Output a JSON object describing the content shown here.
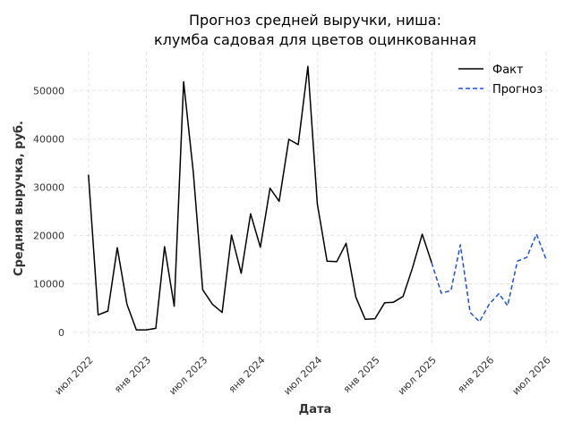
{
  "chart_data": {
    "type": "line",
    "title_lines": [
      "Прогноз средней выручки, ниша:",
      "клумба садовая для цветов оцинкованная"
    ],
    "xlabel": "Дата",
    "ylabel": "Средняя выручка, руб.",
    "ylim": [
      -3000,
      58000
    ],
    "yticks": [
      0,
      10000,
      20000,
      30000,
      40000,
      50000
    ],
    "xlim": [
      "2022-05-13",
      "2026-08-07"
    ],
    "xticks": [
      {
        "date": "2022-07-01",
        "label": "июл 2022"
      },
      {
        "date": "2023-01-01",
        "label": "янв 2023"
      },
      {
        "date": "2023-07-01",
        "label": "июл 2023"
      },
      {
        "date": "2024-01-01",
        "label": "янв 2024"
      },
      {
        "date": "2024-07-01",
        "label": "июл 2024"
      },
      {
        "date": "2025-01-01",
        "label": "янв 2025"
      },
      {
        "date": "2025-07-01",
        "label": "июл 2025"
      },
      {
        "date": "2026-01-01",
        "label": "янв 2026"
      },
      {
        "date": "2026-07-01",
        "label": "июл 2026"
      }
    ],
    "grid": true,
    "legend_position": "top-right",
    "series": [
      {
        "name": "Факт",
        "color": "#000000",
        "style": "solid",
        "x": [
          "2022-06-30",
          "2022-07-31",
          "2022-08-31",
          "2022-09-30",
          "2022-10-31",
          "2022-11-30",
          "2022-12-31",
          "2023-01-31",
          "2023-02-28",
          "2023-03-31",
          "2023-04-30",
          "2023-05-31",
          "2023-06-30",
          "2023-07-31",
          "2023-08-31",
          "2023-09-30",
          "2023-10-31",
          "2023-11-30",
          "2023-12-31",
          "2024-01-31",
          "2024-02-29",
          "2024-03-31",
          "2024-04-30",
          "2024-05-31",
          "2024-06-30",
          "2024-07-31",
          "2024-08-31",
          "2024-09-30",
          "2024-10-31",
          "2024-11-30",
          "2024-12-31",
          "2025-01-31",
          "2025-02-28",
          "2025-03-31",
          "2025-04-30",
          "2025-05-31",
          "2025-06-30"
        ],
        "values": [
          32600,
          3600,
          4400,
          17500,
          5800,
          500,
          500,
          800,
          17700,
          5400,
          51800,
          33100,
          8800,
          5800,
          4100,
          20100,
          12200,
          24500,
          17600,
          29800,
          27100,
          39900,
          38800,
          55000,
          26600,
          14700,
          14600,
          18400,
          7300,
          2700,
          2800,
          6100,
          6200,
          7400,
          13300,
          20300,
          14400
        ]
      },
      {
        "name": "Прогноз",
        "color": "#1f4fd6",
        "style": "dashed",
        "x": [
          "2025-06-30",
          "2025-07-31",
          "2025-08-31",
          "2025-09-30",
          "2025-10-31",
          "2025-11-30",
          "2025-12-31",
          "2026-01-31",
          "2026-02-28",
          "2026-03-31",
          "2026-04-30",
          "2026-05-31",
          "2026-06-30"
        ],
        "values": [
          14400,
          8100,
          8600,
          18100,
          4100,
          2200,
          5800,
          8000,
          5500,
          14700,
          15500,
          20300,
          15200
        ]
      }
    ]
  }
}
